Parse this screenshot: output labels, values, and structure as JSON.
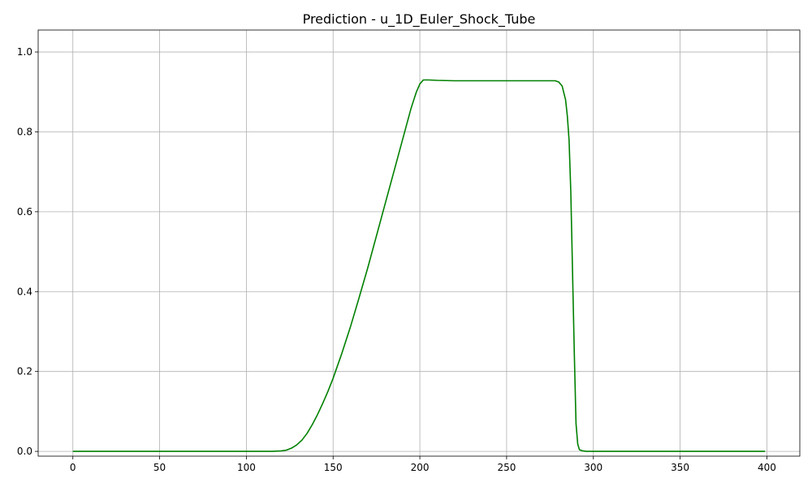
{
  "chart_data": {
    "type": "line",
    "title": "Prediction - u_1D_Euler_Shock_Tube",
    "xlabel": "",
    "ylabel": "",
    "xlim": [
      -20,
      419
    ],
    "ylim": [
      -0.012,
      1.055
    ],
    "x_ticks": [
      0,
      50,
      100,
      150,
      200,
      250,
      300,
      350,
      400
    ],
    "x_tick_labels": [
      "0",
      "50",
      "100",
      "150",
      "200",
      "250",
      "300",
      "350",
      "400"
    ],
    "y_ticks": [
      0.0,
      0.2,
      0.4,
      0.6,
      0.8,
      1.0
    ],
    "y_tick_labels": [
      "0.0",
      "0.2",
      "0.4",
      "0.6",
      "0.8",
      "1.0"
    ],
    "grid": true,
    "legend": "none",
    "series": [
      {
        "color": "#008000",
        "x": [
          0,
          50,
          100,
          115,
          120,
          123,
          126,
          129,
          132,
          135,
          138,
          141,
          144,
          147,
          150,
          155,
          160,
          165,
          170,
          175,
          180,
          185,
          190,
          195,
          198,
          200,
          202,
          205,
          210,
          220,
          240,
          260,
          270,
          278,
          280,
          282,
          284,
          285,
          286,
          287,
          288,
          289,
          290,
          291,
          292,
          294,
          296,
          300,
          350,
          399
        ],
        "y": [
          0.0,
          0.0,
          0.0,
          0.0,
          0.001,
          0.003,
          0.008,
          0.016,
          0.028,
          0.045,
          0.067,
          0.092,
          0.12,
          0.15,
          0.183,
          0.245,
          0.312,
          0.385,
          0.46,
          0.54,
          0.62,
          0.7,
          0.78,
          0.86,
          0.9,
          0.92,
          0.93,
          0.93,
          0.929,
          0.928,
          0.928,
          0.928,
          0.928,
          0.928,
          0.925,
          0.915,
          0.88,
          0.84,
          0.78,
          0.65,
          0.45,
          0.25,
          0.07,
          0.018,
          0.004,
          0.001,
          0.0,
          0.0,
          0.0,
          0.0
        ]
      }
    ]
  }
}
